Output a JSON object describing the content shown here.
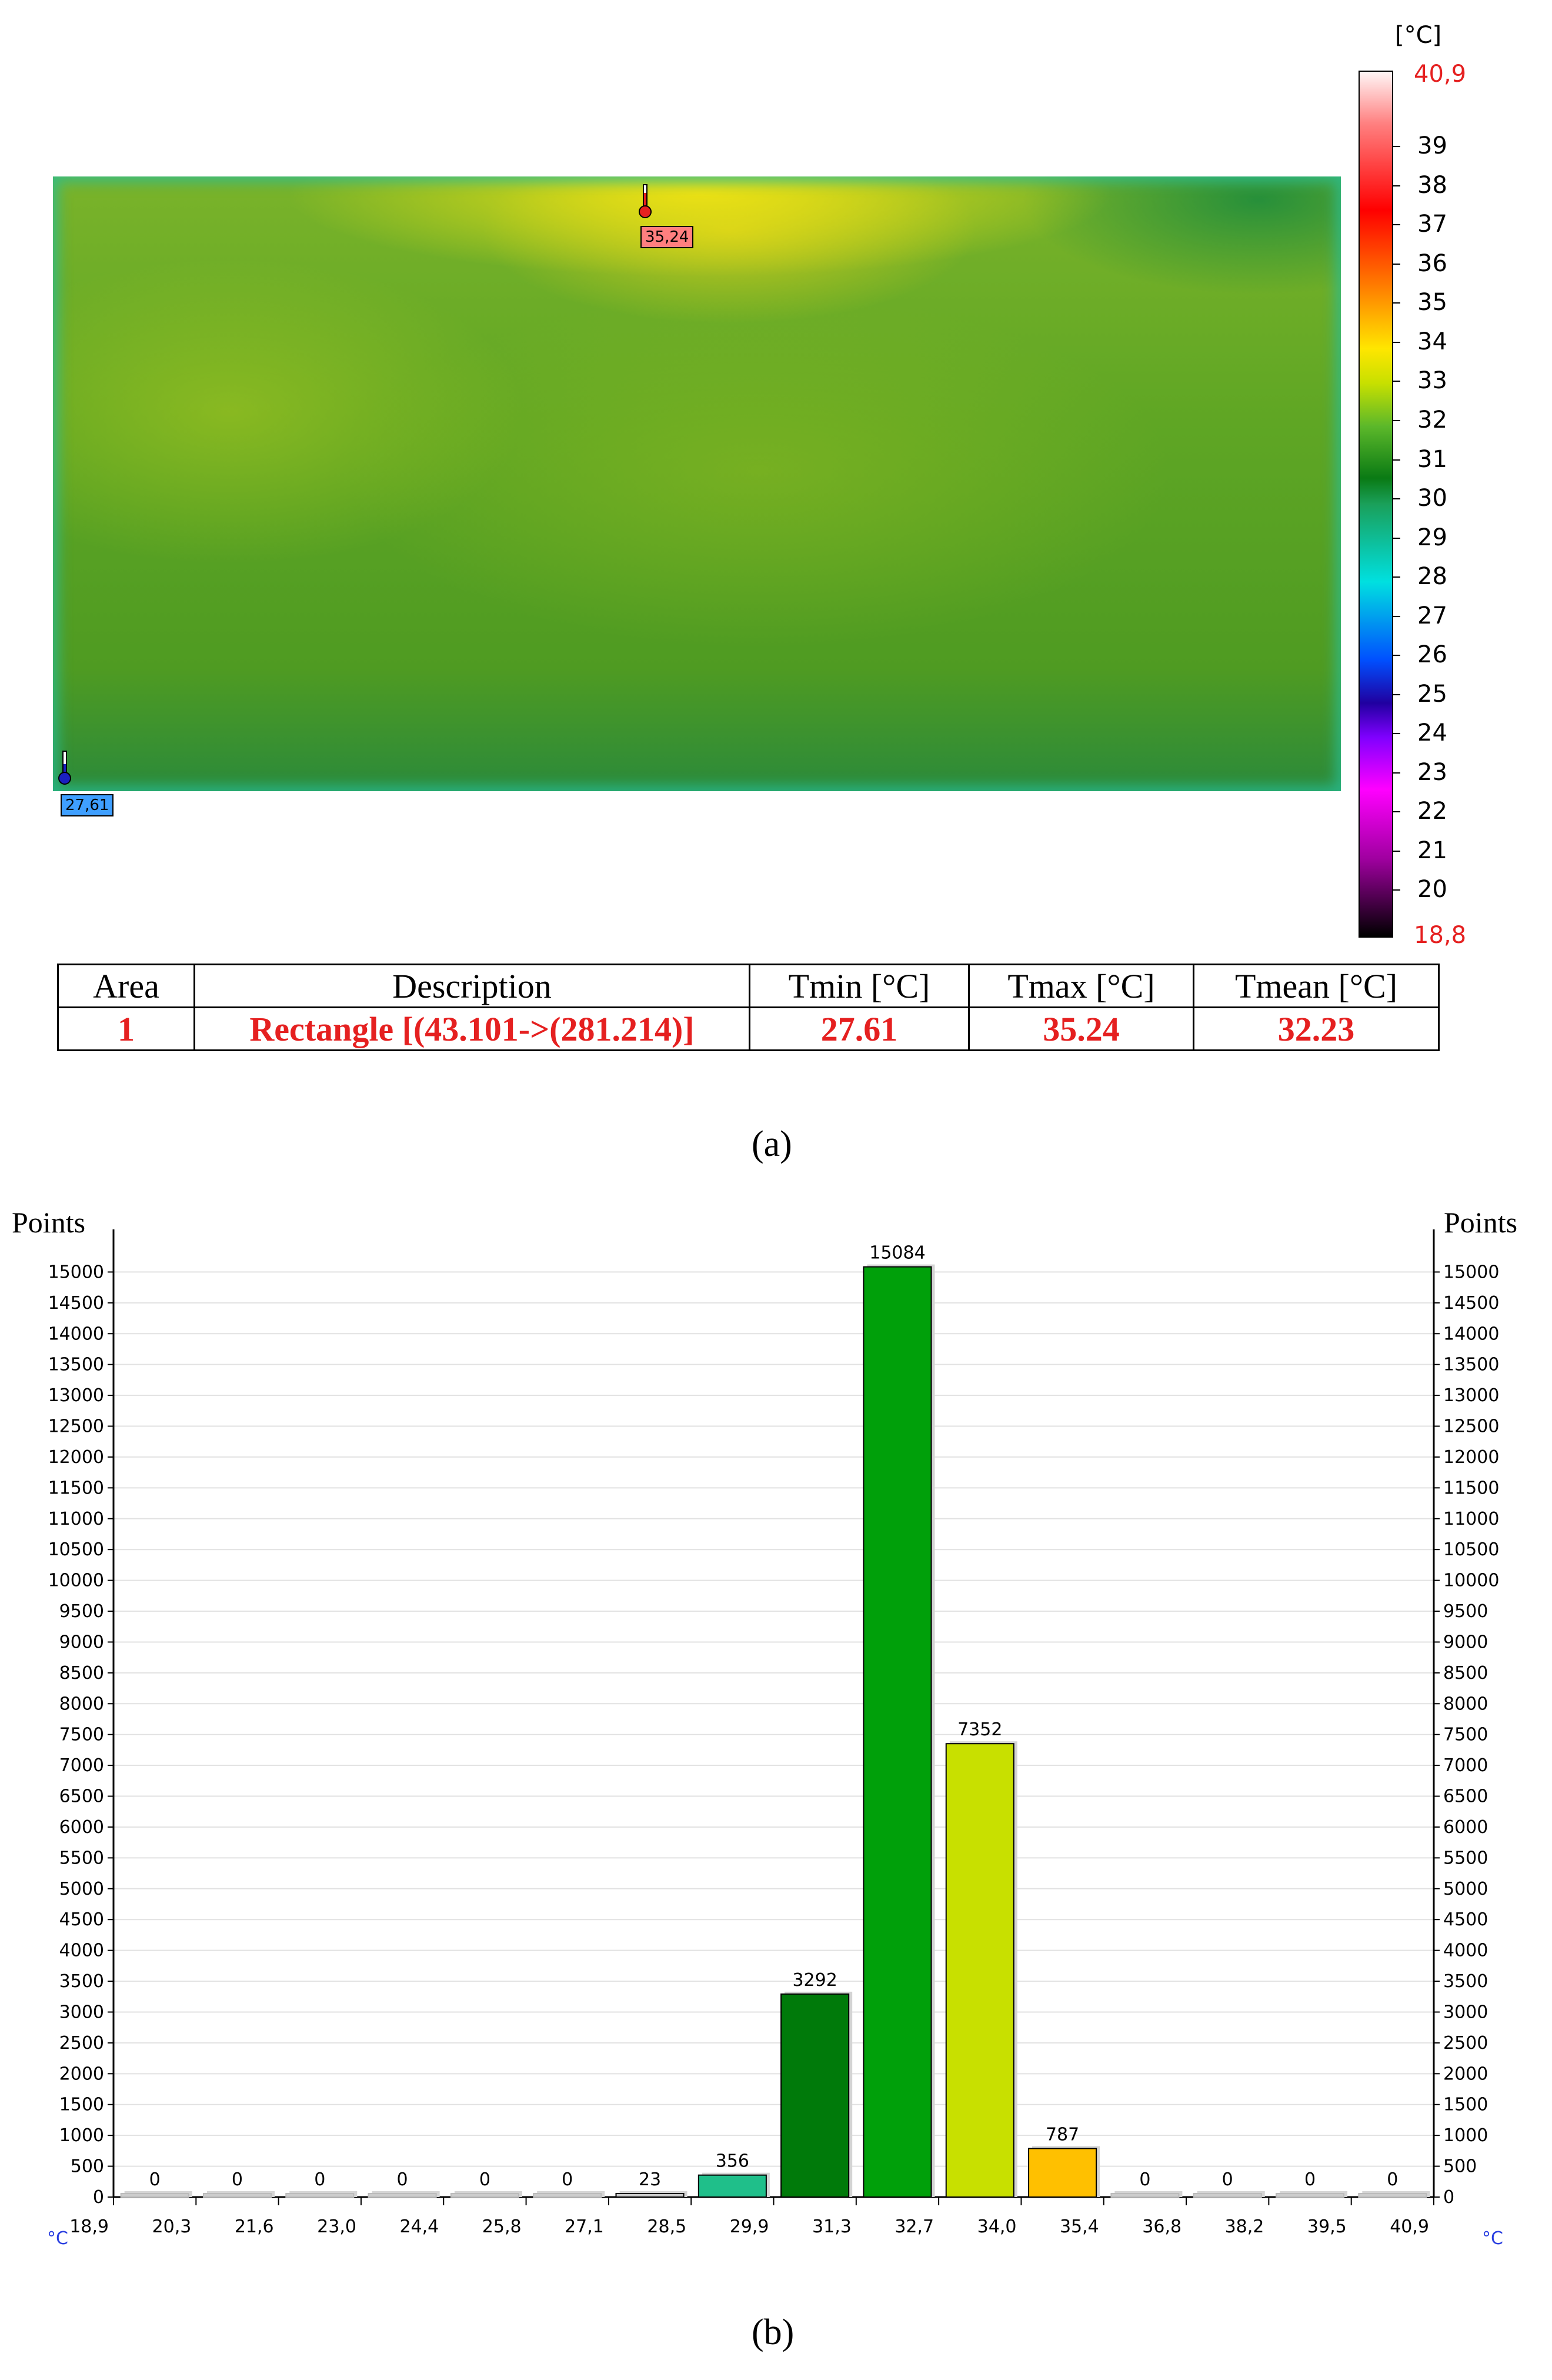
{
  "thermal_image": {
    "colorbar": {
      "unit": "[°C]",
      "max_label": "40,9",
      "min_label": "18,8",
      "ticks": [
        "39",
        "38",
        "37",
        "36",
        "35",
        "34",
        "33",
        "32",
        "31",
        "30",
        "29",
        "28",
        "27",
        "26",
        "25",
        "24",
        "23",
        "22",
        "21",
        "20"
      ],
      "range": [
        18.8,
        40.9
      ]
    },
    "max_marker": {
      "label": "35,24",
      "color": "#ff7f7f"
    },
    "min_marker": {
      "label": "27,61",
      "color": "#3f9fff"
    }
  },
  "table": {
    "headers": [
      "Area",
      "Description",
      "Tmin [°C]",
      "Tmax [°C]",
      "Tmean [°C]"
    ],
    "rows": [
      [
        "1",
        "Rectangle [(43.101->(281.214)]",
        "27.61",
        "35.24",
        "32.23"
      ]
    ]
  },
  "captions": {
    "a": "(a)",
    "b": "(b)"
  },
  "chart_data": {
    "type": "bar",
    "ylabel_left": "Points",
    "ylabel_right": "Points",
    "x_unit": "°C",
    "x_tick_labels": [
      "18,9",
      "20,3",
      "21,6",
      "23,0",
      "24,4",
      "25,8",
      "27,1",
      "28,5",
      "29,9",
      "31,3",
      "32,7",
      "34,0",
      "35,4",
      "36,8",
      "38,2",
      "39,5",
      "40,9"
    ],
    "values": [
      0,
      0,
      0,
      0,
      0,
      0,
      23,
      356,
      3292,
      15084,
      7352,
      787,
      0,
      0,
      0,
      0
    ],
    "bar_colors": [
      "#cccccc",
      "#cccccc",
      "#cccccc",
      "#cccccc",
      "#cccccc",
      "#cccccc",
      "#cccccc",
      "#1fbf8a",
      "#007a0a",
      "#00a00a",
      "#c8e000",
      "#ffc000",
      "#cccccc",
      "#cccccc",
      "#cccccc",
      "#cccccc"
    ],
    "ylim": [
      0,
      15500
    ],
    "y_tick_step": 500,
    "grid": true
  }
}
